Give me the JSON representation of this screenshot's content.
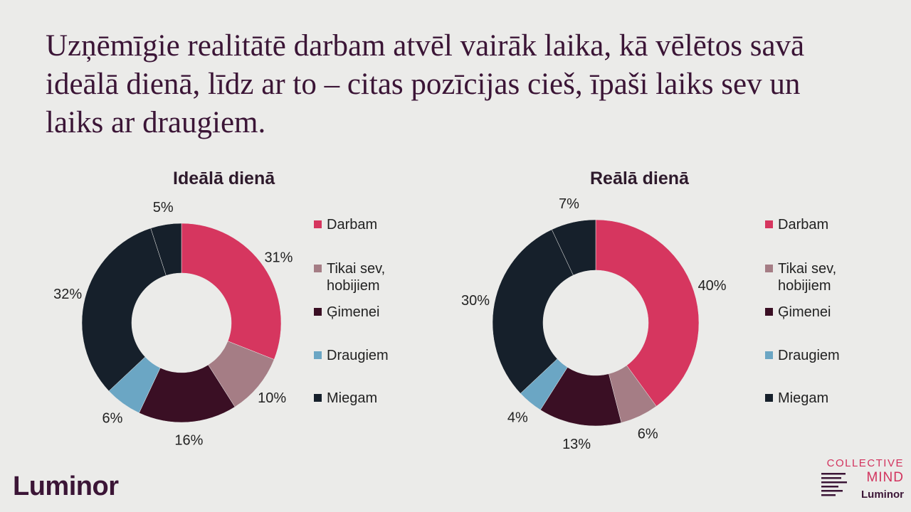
{
  "title": "Uzņēmīgie realitātē darbam atvēl vairāk laika, kā vēlētos savā ideālā dienā, līdz ar to – citas pozīcijas cieš, īpaši laiks sev un laiks ar draugiem.",
  "colors": {
    "Darbam": "#d6365f",
    "Tikai sev, hobijiem": "#a57d85",
    "Ģimenei": "#3a0f24",
    "Draugiem": "#6ba6c4",
    "Miegam": "#16202b"
  },
  "chart_data": [
    {
      "type": "pie",
      "title": "Ideālā dienā",
      "categories": [
        "Darbam",
        "Tikai sev,\nhobijiem",
        "Ģimenei",
        "Draugiem",
        "Miegam"
      ],
      "values": [
        31,
        10,
        16,
        6,
        32,
        5
      ],
      "labels": [
        "31%",
        "10%",
        "16%",
        "6%",
        "32%",
        "5%"
      ],
      "slice_categories": [
        "Darbam",
        "Tikai sev, hobijiem",
        "Ģimenei",
        "Draugiem",
        "Miegam",
        "Miegam"
      ],
      "legend": "right"
    },
    {
      "type": "pie",
      "title": "Reālā dienā",
      "categories": [
        "Darbam",
        "Tikai sev,\nhobijiem",
        "Ģimenei",
        "Draugiem",
        "Miegam"
      ],
      "values": [
        40,
        6,
        13,
        4,
        30,
        7
      ],
      "labels": [
        "40%",
        "6%",
        "13%",
        "4%",
        "30%",
        "7%"
      ],
      "slice_categories": [
        "Darbam",
        "Tikai sev, hobijiem",
        "Ģimenei",
        "Draugiem",
        "Miegam",
        "Miegam"
      ],
      "legend": "right"
    }
  ],
  "brand": {
    "logo_text": "Luminor",
    "collective_line1": "COLLECTIVE",
    "collective_line2": "MIND",
    "collective_line3": "Luminor"
  }
}
